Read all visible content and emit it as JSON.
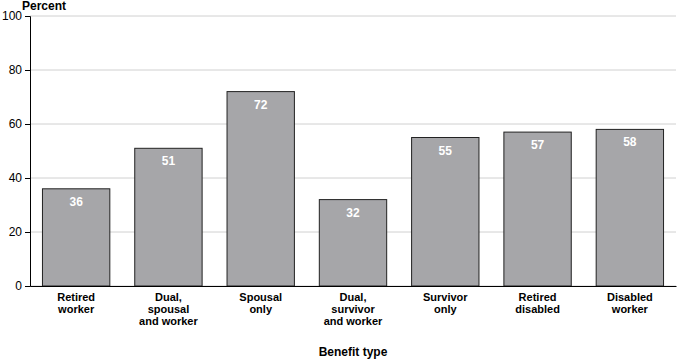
{
  "chart_data": {
    "type": "bar",
    "xlabel": "Benefit type",
    "ylabel": "Percent",
    "categories": [
      "Retired worker",
      "Dual, spousal and worker",
      "Spousal only",
      "Dual, survivor and worker",
      "Survivor only",
      "Retired disabled",
      "Disabled worker"
    ],
    "values": [
      36,
      51,
      72,
      32,
      55,
      57,
      58
    ],
    "color": "#a6a6a9",
    "ylim": [
      0,
      100
    ],
    "yticks": [
      0,
      20,
      40,
      60,
      80,
      100
    ],
    "grid": true,
    "data_labels": true
  }
}
